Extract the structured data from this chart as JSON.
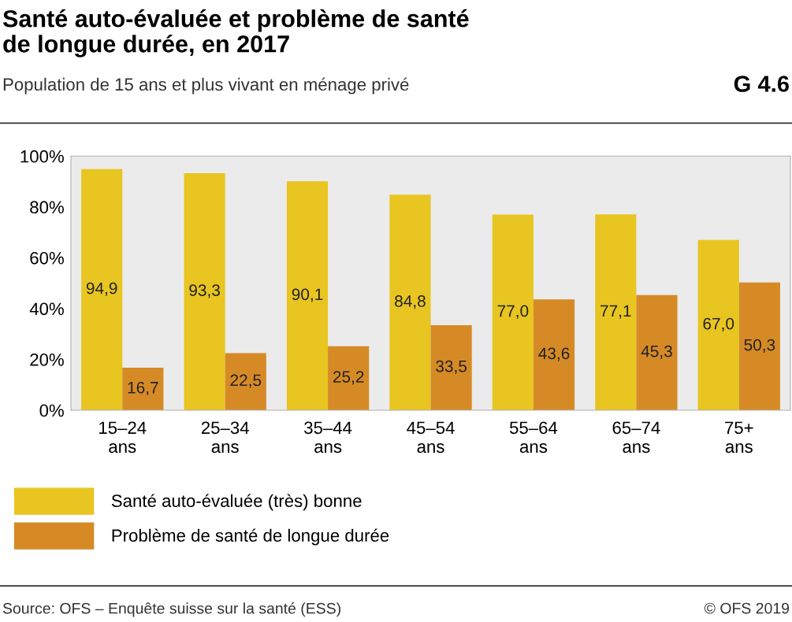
{
  "chart_data": {
    "type": "bar",
    "title": "Santé auto-évaluée et problème de santé\nde longue durée, en 2017",
    "subtitle": "Population de 15 ans et plus vivant en ménage privé",
    "categories": [
      "15–24\nans",
      "25–34\nans",
      "35–44\nans",
      "45–54\nans",
      "55–64\nans",
      "65–74\nans",
      "75+\nans"
    ],
    "series": [
      {
        "name": "Santé auto-évaluée (très) bonne",
        "color": "#e8c520",
        "values": [
          94.9,
          93.3,
          90.1,
          84.8,
          77.0,
          77.1,
          67.0
        ],
        "value_labels": [
          "94,9",
          "93,3",
          "90,1",
          "84,8",
          "77,0",
          "77,1",
          "67,0"
        ]
      },
      {
        "name": "Problème de santé de longue durée",
        "color": "#d68a26",
        "values": [
          16.7,
          22.5,
          25.2,
          33.5,
          43.6,
          45.3,
          50.3
        ],
        "value_labels": [
          "16,7",
          "22,5",
          "25,2",
          "33,5",
          "43,6",
          "45,3",
          "50,3"
        ]
      }
    ],
    "ylim": [
      0,
      100
    ],
    "yticks": [
      {
        "value": 0,
        "label": "0%"
      },
      {
        "value": 20,
        "label": "20%"
      },
      {
        "value": 40,
        "label": "40%"
      },
      {
        "value": 60,
        "label": "60%"
      },
      {
        "value": 80,
        "label": "80%"
      },
      {
        "value": 100,
        "label": "100%"
      }
    ],
    "legend": "bottom left",
    "annotations": [
      "G 4.6",
      "Source: OFS – Enquête suisse sur la santé (ESS)",
      "© OFS 2019"
    ]
  }
}
